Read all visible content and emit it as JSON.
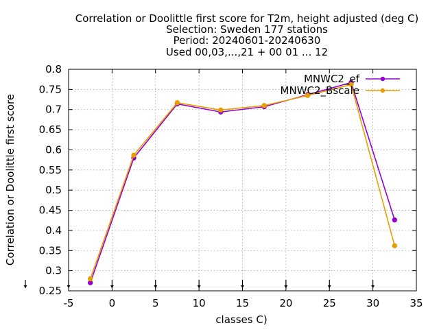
{
  "chart_data": {
    "type": "line",
    "title_lines": [
      "Correlation or Doolittle first score  for T2m, height adjusted (deg C)",
      "Selection: Sweden    177 stations",
      "Period: 20240601-20240630",
      "Used 00,03,...,21 + 00 01 ... 12"
    ],
    "xlabel": "classes C)",
    "ylabel": "Correlation or Doolittle first score",
    "xlim": [
      -5,
      35
    ],
    "ylim": [
      0.25,
      0.8
    ],
    "xticks": [
      -5,
      0,
      5,
      10,
      15,
      20,
      25,
      30,
      35
    ],
    "yticks": [
      0.25,
      0.3,
      0.35,
      0.4,
      0.45,
      0.5,
      0.55,
      0.6,
      0.65,
      0.7,
      0.75,
      0.8
    ],
    "xtick_labels": [
      "-5",
      "0",
      "5",
      "10",
      "15",
      "20",
      "25",
      "30",
      "35"
    ],
    "ytick_labels": [
      "0.25",
      "0.3",
      "0.35",
      "0.4",
      "0.45",
      "0.5",
      "0.55",
      "0.6",
      "0.65",
      "0.7",
      "0.75",
      "0.8"
    ],
    "grid": true,
    "legend_position": "top-right",
    "class_markers_x": [
      -2.5,
      2.5,
      7.5,
      12.5,
      17.5,
      22.5,
      27.5,
      32.5
    ],
    "series": [
      {
        "name": "MNWC2_ef",
        "color": "#9400d3",
        "x": [
          -2.5,
          2.5,
          7.5,
          12.5,
          17.5,
          22.5,
          27.5,
          32.5
        ],
        "y": [
          0.27,
          0.58,
          0.714,
          0.694,
          0.707,
          0.737,
          0.767,
          0.426
        ]
      },
      {
        "name": "MNWC2_Bscale",
        "color": "#e69f00",
        "x": [
          -2.5,
          2.5,
          7.5,
          12.5,
          17.5,
          22.5,
          27.5,
          32.5
        ],
        "y": [
          0.28,
          0.587,
          0.717,
          0.699,
          0.71,
          0.735,
          0.762,
          0.362
        ]
      }
    ]
  }
}
